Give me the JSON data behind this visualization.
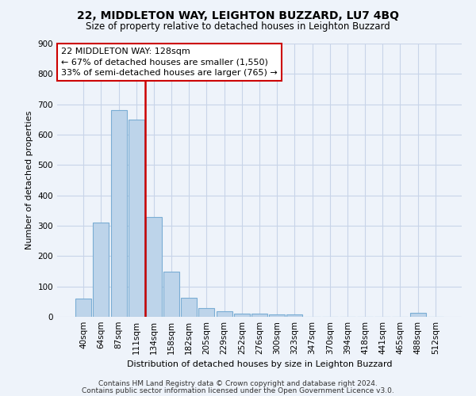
{
  "title1": "22, MIDDLETON WAY, LEIGHTON BUZZARD, LU7 4BQ",
  "title2": "Size of property relative to detached houses in Leighton Buzzard",
  "xlabel": "Distribution of detached houses by size in Leighton Buzzard",
  "ylabel": "Number of detached properties",
  "bar_labels": [
    "40sqm",
    "64sqm",
    "87sqm",
    "111sqm",
    "134sqm",
    "158sqm",
    "182sqm",
    "205sqm",
    "229sqm",
    "252sqm",
    "276sqm",
    "300sqm",
    "323sqm",
    "347sqm",
    "370sqm",
    "394sqm",
    "418sqm",
    "441sqm",
    "465sqm",
    "488sqm",
    "512sqm"
  ],
  "bar_values": [
    60,
    310,
    680,
    650,
    330,
    148,
    63,
    30,
    18,
    10,
    10,
    8,
    8,
    0,
    0,
    0,
    0,
    0,
    0,
    12,
    0
  ],
  "bar_color": "#BDD4EA",
  "bar_edge_color": "#7AADD4",
  "annotation_text1": "22 MIDDLETON WAY: 128sqm",
  "annotation_text2": "← 67% of detached houses are smaller (1,550)",
  "annotation_text3": "33% of semi-detached houses are larger (765) →",
  "annotation_box_color": "white",
  "annotation_box_edge": "#CC0000",
  "vline_color": "#CC0000",
  "vline_x_index": 3,
  "ylim": [
    0,
    900
  ],
  "yticks": [
    0,
    100,
    200,
    300,
    400,
    500,
    600,
    700,
    800,
    900
  ],
  "grid_color": "#C8D4E8",
  "footer1": "Contains HM Land Registry data © Crown copyright and database right 2024.",
  "footer2": "Contains public sector information licensed under the Open Government Licence v3.0.",
  "bg_color": "#EEF3FA",
  "plot_bg_color": "#EEF3FA",
  "title1_fontsize": 10,
  "title2_fontsize": 8.5,
  "ylabel_fontsize": 8,
  "xlabel_fontsize": 8,
  "footer_fontsize": 6.5,
  "tick_fontsize": 7.5,
  "annotation_fontsize": 8
}
